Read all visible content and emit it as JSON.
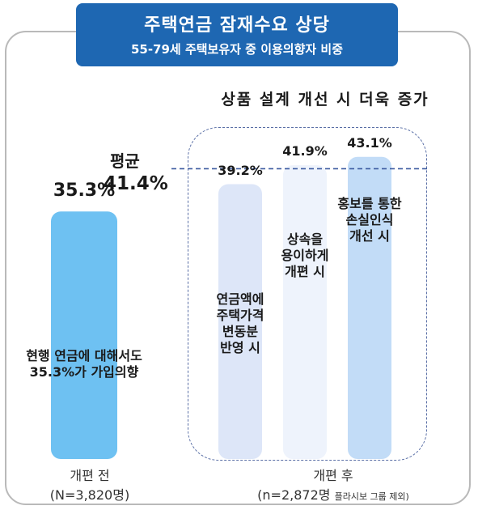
{
  "header": {
    "title": "주택연금 잠재수요 상당",
    "subtitle": "55-79세 주택보유자 중 이용의향자 비중"
  },
  "annotations": {
    "group_title": "상품 설계 개선 시 더욱 증가",
    "average_title": "평균",
    "average_value": "41.4%"
  },
  "axis": {
    "left_group_name": "개편 전",
    "left_group_n": "(N=3,820명)",
    "right_group_name": "개편 후",
    "right_group_n": "(n=2,872명",
    "right_group_note": "플라시보 그룹 제외)"
  },
  "colors": {
    "header": "#1e67b2",
    "bar_current": "#6ec1f2",
    "bar_pension": "#dde6f8",
    "bar_inherit": "#eef3fc",
    "bar_promo": "#c2dcf7",
    "average_line": "#3b5aa0",
    "dashed_box": "#5a6fa6"
  },
  "chart_data": {
    "type": "bar",
    "ylim": [
      0,
      50
    ],
    "average": 41.4,
    "bars": [
      {
        "value": 35.3,
        "value_label": "35.3%",
        "lines": [
          "현행 연금에 대해서도",
          "35.3%가 가입의향"
        ]
      },
      {
        "value": 39.2,
        "value_label": "39.2%",
        "lines": [
          "연금액에",
          "주택가격",
          "변동분",
          "반영 시"
        ]
      },
      {
        "value": 41.9,
        "value_label": "41.9%",
        "lines": [
          "상속을",
          "용이하게",
          "개편 시"
        ]
      },
      {
        "value": 43.1,
        "value_label": "43.1%",
        "lines": [
          "홍보를 통한",
          "손실인식",
          "개선 시"
        ]
      }
    ]
  }
}
